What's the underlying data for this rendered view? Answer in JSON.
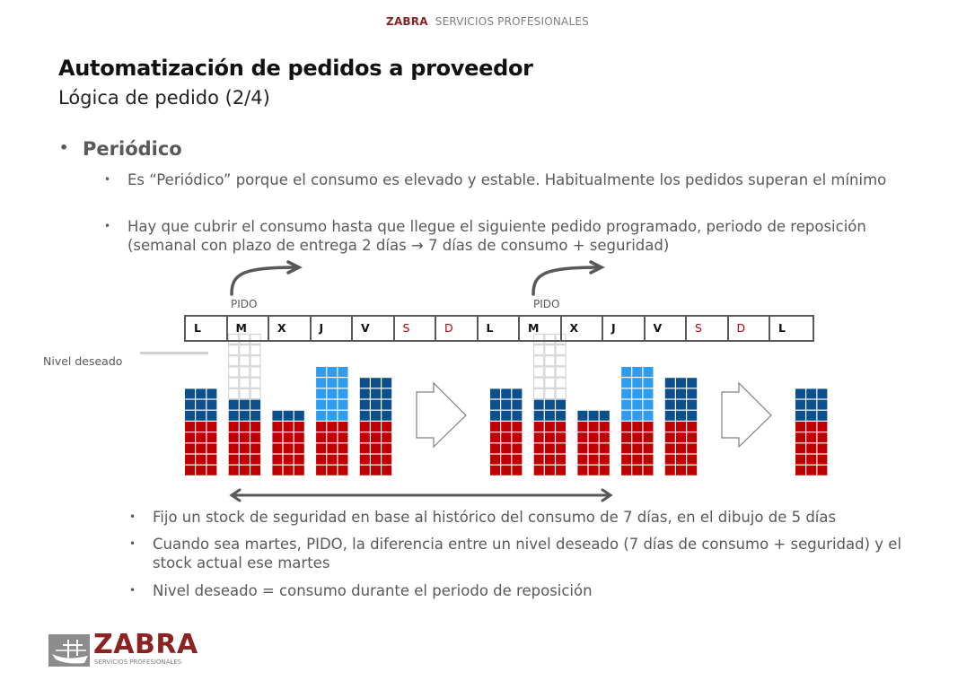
{
  "header": {
    "brand": "ZABRA",
    "brand_tagline": "SERVICIOS PROFESIONALES"
  },
  "title": "Automatización de pedidos a proveedor",
  "subtitle": "Lógica de pedido (2/4)",
  "section": {
    "bullet": "•",
    "heading": "Periódico",
    "points": [
      "Es “Periódico” porque el consumo es elevado y estable. Habitualmente los pedidos superan el mínimo",
      "Hay que cubrir el consumo hasta que llegue el siguiente pedido programado, periodo de reposición (semanal con plazo de entrega 2 días → 7 días de consumo + seguridad)"
    ]
  },
  "diagram": {
    "pido_label": "PIDO",
    "nivel_label": "Nivel deseado",
    "days": [
      {
        "label": "L",
        "weekend": false
      },
      {
        "label": "M",
        "weekend": false
      },
      {
        "label": "X",
        "weekend": false
      },
      {
        "label": "J",
        "weekend": false
      },
      {
        "label": "V",
        "weekend": false
      },
      {
        "label": "S",
        "weekend": true
      },
      {
        "label": "D",
        "weekend": true
      },
      {
        "label": "L",
        "weekend": false
      },
      {
        "label": "M",
        "weekend": false
      },
      {
        "label": "X",
        "weekend": false
      },
      {
        "label": "J",
        "weekend": false
      },
      {
        "label": "V",
        "weekend": false
      },
      {
        "label": "S",
        "weekend": true
      },
      {
        "label": "D",
        "weekend": true
      },
      {
        "label": "L",
        "weekend": false
      }
    ],
    "stock_columns_week": [
      {
        "day": "L",
        "safety_rows": 5,
        "stock_rows": 3,
        "stock_type": "stock",
        "empty_rows": 0
      },
      {
        "day": "M",
        "safety_rows": 5,
        "stock_rows": 2,
        "stock_type": "stock",
        "empty_rows": 6
      },
      {
        "day": "X",
        "safety_rows": 5,
        "stock_rows": 1,
        "stock_type": "stock",
        "empty_rows": 0
      },
      {
        "day": "J",
        "safety_rows": 5,
        "stock_rows": 5,
        "stock_type": "received",
        "empty_rows": 0
      },
      {
        "day": "V",
        "safety_rows": 5,
        "stock_rows": 4,
        "stock_type": "stock",
        "empty_rows": 0
      }
    ],
    "final_column": {
      "day": "L",
      "safety_rows": 5,
      "stock_rows": 3,
      "stock_type": "stock",
      "empty_rows": 0
    },
    "colors": {
      "safety": "#c00000",
      "stock": "#0b4f8c",
      "received": "#2e9cf0",
      "empty_border": "#d0d0d0",
      "weekend_text": "#c00000",
      "brand": "#8b2323"
    }
  },
  "notes": [
    "Fijo un stock de seguridad en base al histórico del consumo de 7 días, en el dibujo de 5 días",
    "Cuando sea martes, PIDO, la diferencia entre un nivel deseado (7 días de consumo + seguridad) y el stock actual ese martes",
    "Nivel deseado = consumo durante el periodo de reposición"
  ],
  "footer": {
    "logo_text": "ZABRA",
    "logo_tagline": "SERVICIOS PROFESIONALES"
  }
}
